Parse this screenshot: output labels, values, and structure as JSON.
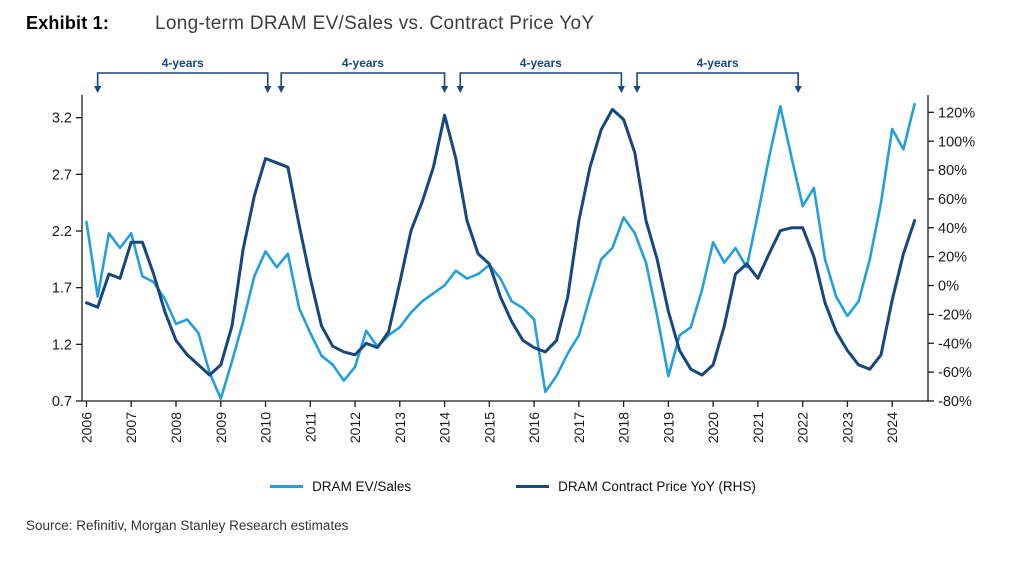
{
  "header": {
    "exhibit": "Exhibit 1:",
    "title": "Long-term DRAM EV/Sales vs. Contract Price YoY"
  },
  "source": "Source: Refinitiv, Morgan Stanley Research estimates",
  "colors": {
    "light_blue": "#23A0DA",
    "navy": "#17477E",
    "axis": "#1a1a1a"
  },
  "chart_data": {
    "type": "line",
    "title": "Long-term DRAM EV/Sales vs. Contract Price YoY",
    "x_range": [
      2005.9,
      2024.8
    ],
    "x_ticks": [
      2006,
      2007,
      2008,
      2009,
      2010,
      2011,
      2012,
      2013,
      2014,
      2015,
      2016,
      2017,
      2018,
      2019,
      2020,
      2021,
      2022,
      2023,
      2024
    ],
    "left_axis": {
      "series": "DRAM EV/Sales",
      "range": [
        0.7,
        3.4
      ],
      "ticks": [
        0.7,
        1.2,
        1.7,
        2.2,
        2.7,
        3.2
      ]
    },
    "right_axis": {
      "series": "DRAM Contract Price YoY",
      "range": [
        -80,
        132
      ],
      "ticks": [
        -80,
        -60,
        -40,
        -20,
        0,
        20,
        40,
        60,
        80,
        100,
        120
      ],
      "suffix": "%"
    },
    "x": [
      2006.0,
      2006.25,
      2006.5,
      2006.75,
      2007.0,
      2007.25,
      2007.5,
      2007.75,
      2008.0,
      2008.25,
      2008.5,
      2008.75,
      2009.0,
      2009.25,
      2009.5,
      2009.75,
      2010.0,
      2010.25,
      2010.5,
      2010.75,
      2011.0,
      2011.25,
      2011.5,
      2011.75,
      2012.0,
      2012.25,
      2012.5,
      2012.75,
      2013.0,
      2013.25,
      2013.5,
      2013.75,
      2014.0,
      2014.25,
      2014.5,
      2014.75,
      2015.0,
      2015.25,
      2015.5,
      2015.75,
      2016.0,
      2016.25,
      2016.5,
      2016.75,
      2017.0,
      2017.25,
      2017.5,
      2017.75,
      2018.0,
      2018.25,
      2018.5,
      2018.75,
      2019.0,
      2019.25,
      2019.5,
      2019.75,
      2020.0,
      2020.25,
      2020.5,
      2020.75,
      2021.0,
      2021.25,
      2021.5,
      2021.75,
      2022.0,
      2022.25,
      2022.5,
      2022.75,
      2023.0,
      2023.25,
      2023.5,
      2023.75,
      2024.0,
      2024.25,
      2024.5
    ],
    "series": [
      {
        "name": "DRAM EV/Sales",
        "axis": "left",
        "color": "#23A0DA",
        "values": [
          2.28,
          1.62,
          2.18,
          2.05,
          2.18,
          1.8,
          1.75,
          1.6,
          1.38,
          1.42,
          1.3,
          0.95,
          0.72,
          1.05,
          1.4,
          1.8,
          2.02,
          1.88,
          2.0,
          1.52,
          1.3,
          1.1,
          1.02,
          0.88,
          1.0,
          1.32,
          1.18,
          1.28,
          1.35,
          1.48,
          1.58,
          1.65,
          1.72,
          1.85,
          1.78,
          1.82,
          1.9,
          1.78,
          1.58,
          1.52,
          1.42,
          0.78,
          0.92,
          1.12,
          1.28,
          1.62,
          1.95,
          2.05,
          2.32,
          2.18,
          1.92,
          1.45,
          0.92,
          1.28,
          1.35,
          1.68,
          2.1,
          1.92,
          2.05,
          1.88,
          2.35,
          2.85,
          3.3,
          2.85,
          2.42,
          2.58,
          1.95,
          1.62,
          1.45,
          1.58,
          1.95,
          2.45,
          3.1,
          2.92,
          3.32
        ]
      },
      {
        "name": "DRAM Contract Price YoY (RHS)",
        "axis": "right",
        "color": "#17477E",
        "values": [
          -12,
          -15,
          8,
          5,
          30,
          30,
          8,
          -18,
          -38,
          -48,
          -55,
          -62,
          -55,
          -28,
          25,
          62,
          88,
          85,
          82,
          42,
          5,
          -28,
          -42,
          -46,
          -48,
          -40,
          -43,
          -32,
          2,
          38,
          58,
          82,
          118,
          88,
          45,
          22,
          15,
          -8,
          -25,
          -38,
          -43,
          -46,
          -38,
          -8,
          45,
          82,
          108,
          122,
          115,
          92,
          45,
          18,
          -18,
          -45,
          -58,
          -62,
          -55,
          -28,
          8,
          15,
          5,
          22,
          38,
          40,
          40,
          20,
          -12,
          -32,
          -45,
          -55,
          -58,
          -48,
          -10,
          22,
          45
        ]
      }
    ],
    "annotations": {
      "cycle_brackets": [
        {
          "label": "4-years",
          "from": 2006.25,
          "to": 2010.05
        },
        {
          "label": "4-years",
          "from": 2010.35,
          "to": 2014.0
        },
        {
          "label": "4-years",
          "from": 2014.35,
          "to": 2017.95
        },
        {
          "label": "4-years",
          "from": 2018.3,
          "to": 2021.9
        }
      ]
    }
  }
}
